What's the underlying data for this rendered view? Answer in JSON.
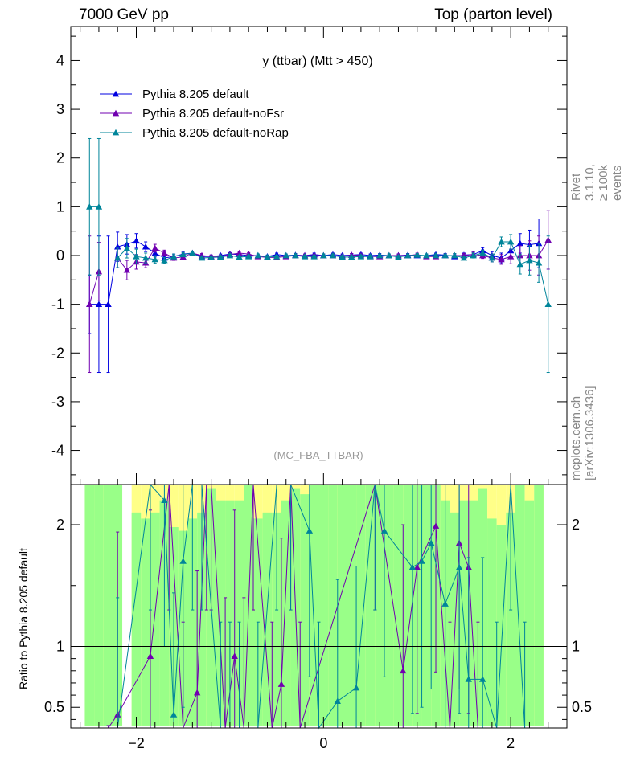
{
  "header": {
    "left": "7000 GeV pp",
    "right": "Top (parton level)"
  },
  "side_labels": {
    "rivet": "Rivet 3.1.10, ≥ 100k events",
    "mcplots": "mcplots.cern.ch [arXiv:1306.3436]"
  },
  "ratio_ylabel": "Ratio to Pythia 8.205 default",
  "colors": {
    "default": "#0000e0",
    "noFsr": "#7000b0",
    "noRap": "#00859a",
    "band_green": "#99ff88",
    "band_yellow": "#ffff88"
  },
  "chart_data": {
    "type": "line",
    "title": "y (ttbar) (Mtt > 450)",
    "watermark": "(MC_FBA_TTBAR)",
    "xlabel": "",
    "ylabel": "",
    "xlim": [
      -2.7,
      2.6
    ],
    "ylim": [
      -4.7,
      4.7
    ],
    "ratio_ylim": [
      0.33,
      2.33
    ],
    "x_ticks": [
      -2,
      0,
      2
    ],
    "y_ticks": [
      -4,
      -3,
      -2,
      -1,
      0,
      1,
      2,
      3,
      4
    ],
    "ratio_ticks": [
      0.5,
      1,
      2
    ],
    "legend": [
      {
        "name": "Pythia 8.205 default",
        "key": "default"
      },
      {
        "name": "Pythia 8.205 default-noFsr",
        "key": "noFsr"
      },
      {
        "name": "Pythia 8.205 default-noRap",
        "key": "noRap"
      }
    ],
    "x": [
      -2.5,
      -2.4,
      -2.3,
      -2.2,
      -2.1,
      -2.0,
      -1.9,
      -1.8,
      -1.7,
      -1.6,
      -1.5,
      -1.4,
      -1.3,
      -1.2,
      -1.1,
      -1.0,
      -0.9,
      -0.8,
      -0.7,
      -0.6,
      -0.5,
      -0.4,
      -0.3,
      -0.2,
      -0.1,
      0.0,
      0.1,
      0.2,
      0.3,
      0.4,
      0.5,
      0.6,
      0.7,
      0.8,
      0.9,
      1.0,
      1.1,
      1.2,
      1.3,
      1.4,
      1.5,
      1.6,
      1.7,
      1.8,
      1.9,
      2.0,
      2.1,
      2.2,
      2.3,
      2.4,
      2.5
    ],
    "series": [
      {
        "name": "Pythia 8.205 default",
        "key": "default",
        "values": [
          -1.0,
          -1.0,
          -1.0,
          0.18,
          0.23,
          0.3,
          0.18,
          0.05,
          -0.05,
          -0.02,
          0.03,
          0.05,
          -0.02,
          -0.02,
          0.0,
          0.03,
          0.02,
          0.0,
          0.0,
          -0.02,
          0.02,
          0.0,
          0.01,
          0.0,
          0.02,
          0.0,
          0.02,
          0.0,
          0.01,
          0.02,
          0.0,
          0.01,
          0.0,
          0.0,
          0.01,
          0.0,
          0.0,
          0.02,
          0.01,
          -0.02,
          0.01,
          0.02,
          0.1,
          0.0,
          -0.05,
          0.1,
          0.25,
          0.22,
          0.25,
          null,
          null
        ],
        "errors": [
          0.6,
          1.4,
          1.4,
          0.3,
          0.2,
          0.15,
          0.1,
          0.08,
          0.06,
          0.05,
          0.04,
          0.04,
          0.04,
          0.03,
          0.03,
          0.03,
          0.03,
          0.03,
          0.03,
          0.03,
          0.03,
          0.03,
          0.03,
          0.03,
          0.03,
          0.03,
          0.03,
          0.03,
          0.03,
          0.03,
          0.03,
          0.03,
          0.03,
          0.03,
          0.03,
          0.03,
          0.03,
          0.03,
          0.03,
          0.04,
          0.04,
          0.05,
          0.06,
          0.08,
          0.1,
          0.15,
          0.2,
          0.3,
          0.5,
          null,
          null
        ]
      },
      {
        "name": "Pythia 8.205 default-noFsr",
        "key": "noFsr",
        "values": [
          -1.0,
          -0.33,
          null,
          -0.05,
          -0.3,
          -0.13,
          -0.15,
          0.15,
          0.05,
          -0.05,
          -0.03,
          0.05,
          0.0,
          -0.02,
          -0.02,
          0.02,
          0.05,
          0.03,
          -0.02,
          -0.04,
          -0.04,
          -0.02,
          0.0,
          0.0,
          0.0,
          0.0,
          0.0,
          -0.02,
          0.01,
          0.0,
          -0.02,
          -0.02,
          0.0,
          0.0,
          0.0,
          0.02,
          -0.02,
          -0.02,
          0.0,
          0.0,
          0.0,
          0.02,
          0.0,
          -0.05,
          -0.08,
          -0.02,
          0.0,
          0.0,
          0.0,
          0.32,
          null
        ],
        "errors": [
          1.4,
          0.6,
          null,
          0.2,
          0.2,
          0.15,
          0.1,
          0.08,
          0.06,
          0.05,
          0.04,
          0.04,
          0.04,
          0.03,
          0.03,
          0.03,
          0.03,
          0.03,
          0.03,
          0.03,
          0.03,
          0.03,
          0.03,
          0.03,
          0.03,
          0.03,
          0.03,
          0.03,
          0.03,
          0.03,
          0.03,
          0.03,
          0.03,
          0.03,
          0.03,
          0.03,
          0.03,
          0.03,
          0.03,
          0.04,
          0.04,
          0.05,
          0.06,
          0.08,
          0.1,
          0.15,
          0.2,
          0.3,
          0.4,
          0.6,
          null
        ]
      },
      {
        "name": "Pythia 8.205 default-noRap",
        "key": "noRap",
        "values": [
          1.0,
          1.0,
          null,
          -0.05,
          0.15,
          -0.02,
          -0.05,
          -0.08,
          -0.1,
          -0.02,
          0.02,
          0.05,
          -0.05,
          -0.04,
          -0.03,
          0.0,
          -0.03,
          -0.02,
          0.0,
          -0.03,
          -0.02,
          0.0,
          0.0,
          -0.02,
          -0.02,
          0.0,
          0.0,
          -0.03,
          -0.03,
          -0.02,
          -0.02,
          0.0,
          0.0,
          -0.03,
          0.0,
          0.01,
          0.0,
          0.0,
          0.0,
          0.0,
          -0.05,
          0.0,
          0.05,
          -0.05,
          0.28,
          0.28,
          -0.18,
          -0.1,
          -0.15,
          -1.0,
          null
        ],
        "errors": [
          1.4,
          1.4,
          null,
          0.2,
          0.2,
          0.15,
          0.1,
          0.08,
          0.06,
          0.05,
          0.04,
          0.04,
          0.04,
          0.03,
          0.03,
          0.03,
          0.03,
          0.03,
          0.03,
          0.03,
          0.03,
          0.03,
          0.03,
          0.03,
          0.03,
          0.03,
          0.03,
          0.03,
          0.03,
          0.03,
          0.03,
          0.03,
          0.03,
          0.03,
          0.03,
          0.03,
          0.03,
          0.03,
          0.03,
          0.04,
          0.04,
          0.05,
          0.06,
          0.08,
          0.1,
          0.15,
          0.2,
          0.3,
          0.4,
          1.4,
          null
        ]
      }
    ],
    "ratio_series": [
      {
        "name": "Pythia 8.205 default-noFsr",
        "key": "noFsr",
        "x": [
          -2.3,
          -2.2,
          -1.85,
          -1.65,
          -1.5,
          -1.35,
          -1.25,
          -1.2,
          -1.05,
          -0.95,
          -0.85,
          -0.75,
          -0.55,
          -0.45,
          -0.35,
          -0.25,
          0.55,
          0.85,
          1.0,
          1.2,
          1.35,
          1.45,
          1.55,
          1.65
        ],
        "values": [
          0.25,
          0.44,
          0.92,
          2.5,
          0.2,
          0.62,
          2.5,
          2.5,
          0.2,
          0.92,
          0.2,
          2.5,
          0.2,
          0.69,
          2.5,
          0.2,
          2.5,
          0.8,
          1.65,
          1.99,
          0.2,
          1.85,
          1.65,
          0.2
        ],
        "errors": [
          0.1,
          1.5,
          1.2,
          1.2,
          1.0,
          1.0,
          1.2,
          1.2,
          1.2,
          1.2,
          1.2,
          1.2,
          1.0,
          1.2,
          1.2,
          1.0,
          1.2,
          1.2,
          1.2,
          1.2,
          1.0,
          1.2,
          1.2,
          1.0
        ]
      },
      {
        "name": "Pythia 8.205 default-noRap",
        "key": "noRap",
        "x": [
          -2.2,
          -1.85,
          -1.7,
          -1.6,
          -1.5,
          -1.4,
          -1.3,
          -1.1,
          -1.0,
          -0.9,
          -0.7,
          -0.5,
          -0.35,
          -0.15,
          -0.05,
          0.15,
          0.35,
          0.55,
          0.65,
          0.95,
          1.05,
          1.15,
          1.3,
          1.45,
          1.55,
          1.7,
          1.85,
          2.0,
          2.15
        ],
        "values": [
          0.2,
          2.5,
          2.2,
          0.44,
          1.7,
          2.5,
          2.5,
          0.2,
          0.2,
          0.2,
          0.2,
          2.5,
          2.5,
          1.95,
          0.2,
          0.55,
          0.66,
          2.5,
          1.95,
          1.65,
          1.7,
          1.85,
          1.35,
          1.65,
          0.73,
          0.73,
          0.2,
          2.5,
          0.2
        ],
        "errors": [
          1.2,
          1.2,
          1.2,
          1.0,
          1.2,
          1.2,
          1.2,
          1.0,
          1.0,
          1.0,
          1.0,
          1.2,
          1.2,
          1.2,
          1.0,
          1.0,
          1.0,
          1.2,
          1.2,
          1.2,
          1.2,
          1.2,
          1.2,
          1.2,
          1.0,
          1.0,
          1.0,
          1.2,
          1.0
        ]
      }
    ],
    "ratio_bands": {
      "x_edges": [
        -2.55,
        -2.45,
        -2.35,
        -2.25,
        -2.15,
        -2.05,
        -1.95,
        -1.85,
        -1.75,
        -1.65,
        -1.55,
        -1.45,
        -1.35,
        -1.25,
        -1.15,
        -1.05,
        -0.95,
        -0.85,
        -0.75,
        -0.65,
        -0.55,
        -0.45,
        -0.35,
        -0.25,
        -0.15,
        -0.05,
        0.05,
        0.15,
        0.25,
        0.35,
        0.45,
        0.55,
        0.65,
        0.75,
        0.85,
        0.95,
        1.05,
        1.15,
        1.25,
        1.35,
        1.45,
        1.55,
        1.65,
        1.75,
        1.85,
        1.95,
        2.05,
        2.15,
        2.25,
        2.35
      ],
      "green_top": [
        2.33,
        2.33,
        2.33,
        2.33,
        null,
        2.1,
        2.05,
        2.1,
        2.2,
        1.98,
        1.95,
        2.05,
        2.1,
        2.3,
        2.2,
        2.2,
        2.2,
        2.33,
        2.05,
        2.1,
        2.1,
        2.2,
        2.3,
        2.25,
        2.33,
        2.33,
        2.33,
        2.33,
        2.33,
        2.33,
        2.33,
        2.33,
        2.33,
        2.33,
        2.33,
        2.33,
        2.33,
        2.33,
        2.2,
        2.1,
        2.2,
        2.2,
        2.3,
        2.05,
        2.0,
        2.1,
        2.33,
        2.2,
        2.33
      ],
      "green_bottom": [
        0.35,
        0.35,
        0.35,
        0.35,
        null,
        0.35,
        0.35,
        0.35,
        0.35,
        0.35,
        0.35,
        0.35,
        0.35,
        0.35,
        0.35,
        0.35,
        0.35,
        0.35,
        0.35,
        0.35,
        0.35,
        0.35,
        0.35,
        0.35,
        0.35,
        0.35,
        0.35,
        0.35,
        0.35,
        0.35,
        0.35,
        0.35,
        0.35,
        0.35,
        0.35,
        0.35,
        0.35,
        0.35,
        0.35,
        0.35,
        0.35,
        0.35,
        0.35,
        0.35,
        0.35,
        0.35,
        0.35,
        0.35,
        0.35
      ],
      "yellow_top": [
        2.33,
        2.33,
        2.33,
        2.33,
        null,
        2.33,
        2.33,
        2.33,
        2.33,
        2.33,
        2.33,
        2.33,
        2.33,
        2.33,
        2.33,
        2.33,
        2.33,
        2.33,
        2.33,
        2.33,
        2.33,
        2.33,
        2.33,
        2.33,
        2.33,
        2.33,
        2.33,
        2.33,
        2.33,
        2.33,
        2.33,
        2.33,
        2.33,
        2.33,
        2.33,
        2.33,
        2.33,
        2.33,
        2.33,
        2.33,
        2.33,
        2.33,
        2.33,
        2.33,
        2.33,
        2.33,
        2.33,
        2.33,
        2.33
      ]
    }
  }
}
